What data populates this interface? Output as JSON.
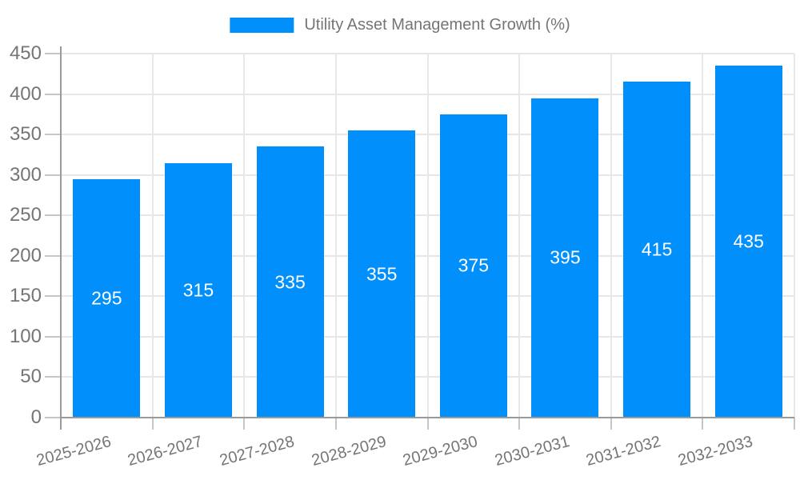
{
  "chart_data": {
    "type": "bar",
    "title": "Utility Asset Management Growth (%)",
    "categories": [
      "2025-2026",
      "2026-2027",
      "2027-2028",
      "2028-2029",
      "2029-2030",
      "2030-2031",
      "2031-2032",
      "2032-2033"
    ],
    "values": [
      295,
      315,
      335,
      355,
      375,
      395,
      415,
      435
    ],
    "xlabel": "",
    "ylabel": "",
    "ylim": [
      0,
      450
    ],
    "yticks": [
      0,
      50,
      100,
      150,
      200,
      250,
      300,
      350,
      400,
      450
    ],
    "grid": true,
    "legend_position": "top-center",
    "bar_value_labels": "inside-center-white",
    "xlabel_rotation_deg": -15
  },
  "colors": {
    "bar": "#008FFB",
    "axis_text": "#757575",
    "bar_label_text": "#ffffff",
    "grid_line": "#e7e7e7",
    "axis_line": "#9a9a9a",
    "tick_line": "#c6c6c6",
    "background": "#ffffff"
  }
}
